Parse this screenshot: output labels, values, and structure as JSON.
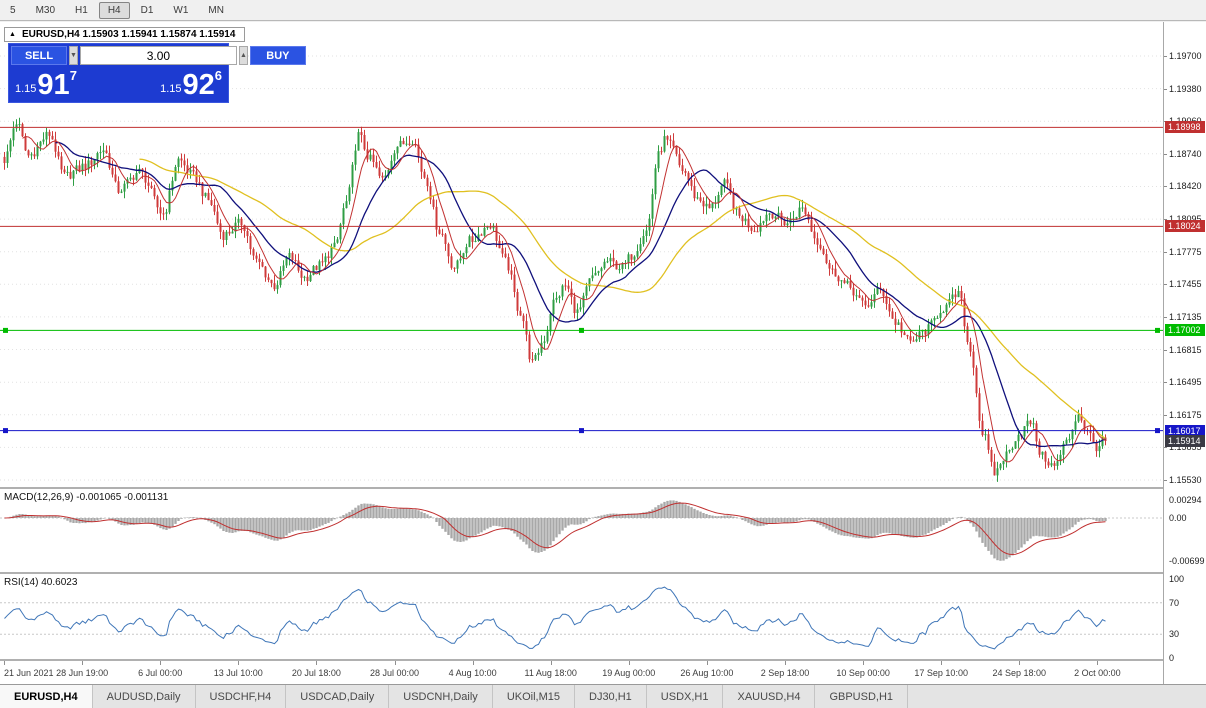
{
  "toolbar": {
    "timeframes": [
      "5",
      "M30",
      "H1",
      "H4",
      "D1",
      "W1",
      "MN"
    ],
    "active_timeframe": "H4"
  },
  "chart": {
    "title": "EURUSD,H4 1.15903 1.15941 1.15874 1.15914",
    "collapse_icon": "▲",
    "trade_panel": {
      "sell_label": "SELL",
      "buy_label": "BUY",
      "lot_size": "3.00",
      "spin_down": "▼",
      "spin_up": "▲",
      "sell_price_prefix": "1.15",
      "sell_price_big": "91",
      "sell_price_sup": "7",
      "buy_price_prefix": "1.15",
      "buy_price_big": "92",
      "buy_price_sup": "6"
    }
  },
  "chart_data": {
    "type": "candlestick",
    "symbol": "EURUSD",
    "timeframe": "H4",
    "current_ohlc": {
      "open": 1.15903,
      "high": 1.15941,
      "low": 1.15874,
      "close": 1.15914
    },
    "last_price": 1.15914,
    "y_axis_labels": [
      "1.19700",
      "1.19380",
      "1.19060",
      "1.18740",
      "1.18420",
      "1.18095",
      "1.17775",
      "1.17455",
      "1.17135",
      "1.16815",
      "1.16495",
      "1.16175",
      "1.15855",
      "1.15530"
    ],
    "x_labels": [
      "21 Jun 2021",
      "28 Jun 19:00",
      "6 Jul 00:00",
      "13 Jul 10:00",
      "20 Jul 18:00",
      "28 Jul 00:00",
      "4 Aug 10:00",
      "11 Aug 18:00",
      "19 Aug 00:00",
      "26 Aug 10:00",
      "2 Sep 18:00",
      "10 Sep 00:00",
      "17 Sep 10:00",
      "24 Sep 18:00",
      "2 Oct 00:00"
    ],
    "num_candles": 368,
    "price_path": [
      [
        0,
        1.1868
      ],
      [
        4,
        1.1905
      ],
      [
        8,
        1.1872
      ],
      [
        15,
        1.1893
      ],
      [
        20,
        1.1852
      ],
      [
        27,
        1.1862
      ],
      [
        33,
        1.1878
      ],
      [
        38,
        1.1838
      ],
      [
        45,
        1.1856
      ],
      [
        53,
        1.1815
      ],
      [
        58,
        1.1868
      ],
      [
        63,
        1.1852
      ],
      [
        68,
        1.1828
      ],
      [
        73,
        1.1794
      ],
      [
        79,
        1.1806
      ],
      [
        84,
        1.1768
      ],
      [
        90,
        1.1744
      ],
      [
        95,
        1.1773
      ],
      [
        100,
        1.1752
      ],
      [
        105,
        1.1764
      ],
      [
        110,
        1.1782
      ],
      [
        114,
        1.1826
      ],
      [
        118,
        1.1892
      ],
      [
        122,
        1.1868
      ],
      [
        126,
        1.1848
      ],
      [
        131,
        1.1882
      ],
      [
        136,
        1.1888
      ],
      [
        140,
        1.1852
      ],
      [
        145,
        1.1798
      ],
      [
        150,
        1.1762
      ],
      [
        155,
        1.1788
      ],
      [
        162,
        1.1804
      ],
      [
        167,
        1.1768
      ],
      [
        172,
        1.1718
      ],
      [
        176,
        1.1668
      ],
      [
        180,
        1.1692
      ],
      [
        183,
        1.1728
      ],
      [
        187,
        1.1744
      ],
      [
        191,
        1.1718
      ],
      [
        196,
        1.1752
      ],
      [
        201,
        1.1768
      ],
      [
        206,
        1.1762
      ],
      [
        209,
        1.1774
      ],
      [
        214,
        1.1798
      ],
      [
        218,
        1.1872
      ],
      [
        220,
        1.1888
      ],
      [
        222,
        1.1882
      ],
      [
        226,
        1.1858
      ],
      [
        231,
        1.183
      ],
      [
        235,
        1.182
      ],
      [
        240,
        1.1844
      ],
      [
        245,
        1.1812
      ],
      [
        250,
        1.18
      ],
      [
        255,
        1.1816
      ],
      [
        261,
        1.1806
      ],
      [
        266,
        1.182
      ],
      [
        271,
        1.1788
      ],
      [
        276,
        1.1758
      ],
      [
        281,
        1.1744
      ],
      [
        287,
        1.1724
      ],
      [
        292,
        1.174
      ],
      [
        297,
        1.1708
      ],
      [
        302,
        1.1688
      ],
      [
        307,
        1.17
      ],
      [
        313,
        1.1722
      ],
      [
        318,
        1.1736
      ],
      [
        322,
        1.168
      ],
      [
        326,
        1.16
      ],
      [
        330,
        1.156
      ],
      [
        334,
        1.1578
      ],
      [
        338,
        1.1598
      ],
      [
        342,
        1.161
      ],
      [
        346,
        1.1576
      ],
      [
        350,
        1.1566
      ],
      [
        354,
        1.159
      ],
      [
        358,
        1.1618
      ],
      [
        361,
        1.16
      ],
      [
        364,
        1.1586
      ],
      [
        367,
        1.15914
      ]
    ],
    "hlines": [
      {
        "price": 1.18998,
        "label": "1.18998",
        "color": "#c03030",
        "handles": false
      },
      {
        "price": 1.18024,
        "label": "1.18024",
        "color": "#c03030",
        "handles": false
      },
      {
        "price": 1.17002,
        "label": "1.17002",
        "color": "#00bb00",
        "handles": true
      },
      {
        "price": 1.16017,
        "label": "1.16017",
        "color": "#1616c8",
        "handles": true
      }
    ],
    "current_price_tag": {
      "label": "1.15914",
      "color": "#3a3a44"
    },
    "moving_averages": [
      {
        "period": 7,
        "color": "#c23232"
      },
      {
        "period": 18,
        "color": "#10107c"
      },
      {
        "period": 46,
        "color": "#e0c020"
      }
    ],
    "candle_colors": {
      "up": "#2f9e44",
      "down": "#cf3b3b"
    }
  },
  "macd": {
    "label": "MACD(12,26,9) -0.001065 -0.001131",
    "params": [
      12,
      26,
      9
    ],
    "values": [
      -0.001065,
      -0.001131
    ],
    "y_axis_labels": [
      "0.00294",
      "0.00",
      "-0.00699"
    ],
    "histogram_color": "#a8a8a8",
    "signal_color": "#c03030"
  },
  "rsi": {
    "label": "RSI(14) 40.6023",
    "period": 14,
    "value": 40.6023,
    "y_axis_labels": [
      "100",
      "70",
      "30",
      "0"
    ],
    "levels": [
      70,
      30
    ],
    "line_color": "#3f76b8"
  },
  "tabs": [
    "EURUSD,H4",
    "AUDUSD,Daily",
    "USDCHF,H4",
    "USDCAD,Daily",
    "USDCNH,Daily",
    "UKOil,M15",
    "DJ30,H1",
    "USDX,H1",
    "XAUUSD,H4",
    "GBPUSD,H1"
  ],
  "active_tab": "EURUSD,H4"
}
